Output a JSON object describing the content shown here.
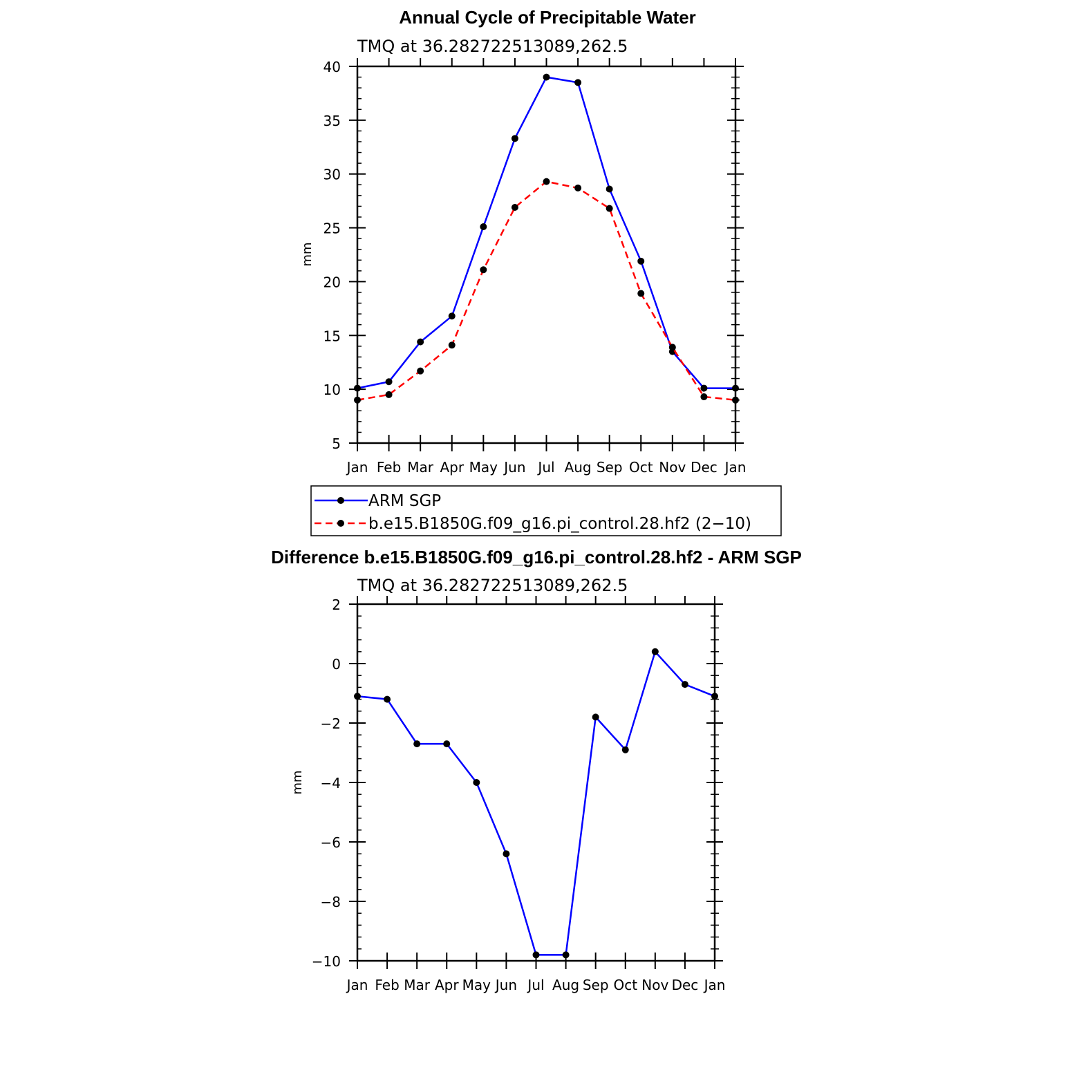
{
  "chart_data": [
    {
      "type": "line",
      "title": "Annual Cycle of Precipitable Water",
      "subtitle": "TMQ at 36.282722513089,262.5",
      "xlabel": "",
      "ylabel": "mm",
      "categories": [
        "Jan",
        "Feb",
        "Mar",
        "Apr",
        "May",
        "Jun",
        "Jul",
        "Aug",
        "Sep",
        "Oct",
        "Nov",
        "Dec",
        "Jan"
      ],
      "ylim": [
        5,
        40
      ],
      "yticks": [
        5,
        10,
        15,
        20,
        25,
        30,
        35,
        40
      ],
      "ytick_labels": [
        "5",
        "10",
        "15",
        "20",
        "25",
        "30",
        "35",
        "40"
      ],
      "series": [
        {
          "name": "ARM SGP",
          "color": "#0000ff",
          "dash": "solid",
          "values": [
            10.1,
            10.7,
            14.4,
            16.8,
            25.1,
            33.3,
            39.0,
            38.5,
            28.6,
            21.9,
            13.5,
            10.1,
            10.1
          ]
        },
        {
          "name": "b.e15.B1850G.f09_g16.pi_control.28.hf2 (2−10)",
          "color": "#ff0000",
          "dash": "dashed",
          "values": [
            9.0,
            9.5,
            11.7,
            14.1,
            21.1,
            26.9,
            29.3,
            28.7,
            26.8,
            18.9,
            13.9,
            9.3,
            9.0
          ]
        }
      ],
      "legend_position": "below"
    },
    {
      "type": "line",
      "title": "Difference b.e15.B1850G.f09_g16.pi_control.28.hf2 - ARM SGP",
      "subtitle": "TMQ at 36.282722513089,262.5",
      "xlabel": "",
      "ylabel": "mm",
      "categories": [
        "Jan",
        "Feb",
        "Mar",
        "Apr",
        "May",
        "Jun",
        "Jul",
        "Aug",
        "Sep",
        "Oct",
        "Nov",
        "Dec",
        "Jan"
      ],
      "ylim": [
        -10,
        2
      ],
      "yticks": [
        -10,
        -8,
        -6,
        -4,
        -2,
        0,
        2
      ],
      "ytick_labels": [
        "−10",
        "−8",
        "−6",
        "−4",
        "−2",
        "0",
        "2"
      ],
      "series": [
        {
          "name": "Difference",
          "color": "#0000ff",
          "dash": "solid",
          "values": [
            -1.1,
            -1.2,
            -2.7,
            -2.7,
            -4.0,
            -6.4,
            -9.8,
            -9.8,
            -1.8,
            -2.9,
            0.4,
            -0.7,
            -1.1
          ]
        }
      ]
    }
  ]
}
